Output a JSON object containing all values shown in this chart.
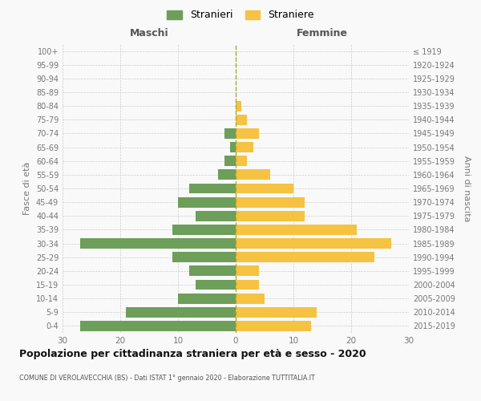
{
  "age_groups": [
    "100+",
    "95-99",
    "90-94",
    "85-89",
    "80-84",
    "75-79",
    "70-74",
    "65-69",
    "60-64",
    "55-59",
    "50-54",
    "45-49",
    "40-44",
    "35-39",
    "30-34",
    "25-29",
    "20-24",
    "15-19",
    "10-14",
    "5-9",
    "0-4"
  ],
  "birth_years": [
    "≤ 1919",
    "1920-1924",
    "1925-1929",
    "1930-1934",
    "1935-1939",
    "1940-1944",
    "1945-1949",
    "1950-1954",
    "1955-1959",
    "1960-1964",
    "1965-1969",
    "1970-1974",
    "1975-1979",
    "1980-1984",
    "1985-1989",
    "1990-1994",
    "1995-1999",
    "2000-2004",
    "2005-2009",
    "2010-2014",
    "2015-2019"
  ],
  "males": [
    0,
    0,
    0,
    0,
    0,
    0,
    2,
    1,
    2,
    3,
    8,
    10,
    7,
    11,
    27,
    11,
    8,
    7,
    10,
    19,
    27
  ],
  "females": [
    0,
    0,
    0,
    0,
    1,
    2,
    4,
    3,
    2,
    6,
    10,
    12,
    12,
    21,
    27,
    24,
    4,
    4,
    5,
    14,
    13
  ],
  "male_color": "#6d9e5a",
  "female_color": "#f5c242",
  "background_color": "#f9f9f9",
  "grid_color": "#cccccc",
  "title": "Popolazione per cittadinanza straniera per età e sesso - 2020",
  "subtitle": "COMUNE DI VEROLAVECCHIA (BS) - Dati ISTAT 1° gennaio 2020 - Elaborazione TUTTITALIA.IT",
  "xlabel_left": "Maschi",
  "xlabel_right": "Femmine",
  "ylabel_left": "Fasce di età",
  "ylabel_right": "Anni di nascita",
  "legend_male": "Stranieri",
  "legend_female": "Straniere",
  "xlim": 30,
  "bar_height": 0.75
}
